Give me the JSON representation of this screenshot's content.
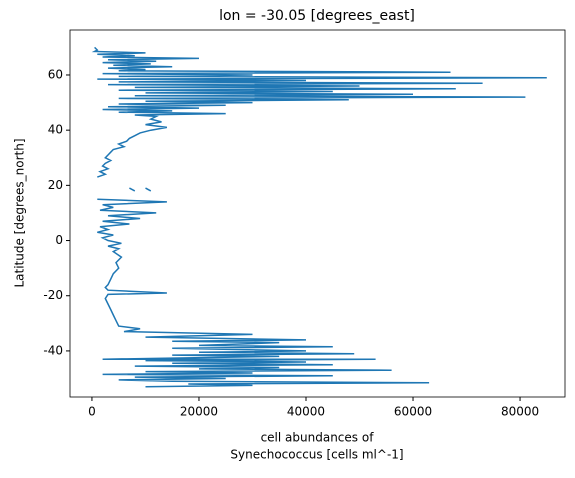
{
  "chart_data": {
    "type": "line",
    "title": "lon = -30.05 [degrees_east]",
    "xlabel": [
      "cell abundances of",
      "Synechococcus [cells ml^-1]"
    ],
    "ylabel": "Latitude [degrees_north]",
    "color": "#1f77b4",
    "xlim": [
      -4100,
      88400
    ],
    "ylim": [
      -56.7,
      76.3
    ],
    "xticks": [
      0,
      20000,
      40000,
      60000,
      80000
    ],
    "yticks": [
      -40,
      -20,
      0,
      20,
      40,
      60
    ],
    "x": [
      500,
      1000,
      500,
      10000,
      1000,
      8000,
      2000,
      20000,
      3000,
      12000,
      2000,
      11000,
      4000,
      15000,
      3000,
      10000,
      5000,
      67000,
      2000,
      30000,
      5000,
      85000,
      1000,
      40000,
      5000,
      73000,
      3000,
      50000,
      8000,
      68000,
      5000,
      45000,
      10000,
      60000,
      8000,
      81000,
      5000,
      48000,
      10000,
      30000,
      5000,
      25000,
      3000,
      20000,
      2000,
      15000,
      5000,
      25000,
      8000,
      12000,
      11000,
      13000,
      10000,
      14000,
      11000,
      9000,
      8000,
      7000,
      6500,
      5000,
      6000,
      4000,
      3500,
      3000,
      2500,
      3500,
      2500,
      2000,
      3000,
      1500,
      2500,
      1000,
      null,
      7000,
      8000,
      null,
      10000,
      11000,
      null,
      1000,
      14000,
      2000,
      4000,
      1500,
      12000,
      3000,
      9000,
      2000,
      7000,
      1500,
      3000,
      1000,
      4000,
      2000,
      3000,
      5500,
      3000,
      5000,
      4000,
      5500,
      4500,
      5000,
      4000,
      3500,
      3000,
      2500,
      3000,
      14000,
      3000,
      2500,
      3000,
      3500,
      4000,
      4500,
      5000,
      9000,
      6000,
      30000,
      10000,
      40000,
      15000,
      35000,
      20000,
      45000,
      15000,
      40000,
      20000,
      49000,
      15000,
      35000,
      2000,
      53000,
      10000,
      40000,
      15000,
      45000,
      8000,
      35000,
      20000,
      56000,
      10000,
      30000,
      2000,
      45000,
      8000,
      25000,
      5000,
      15000,
      63000,
      18000,
      30000,
      10000
    ],
    "y": [
      70,
      69,
      68.5,
      68,
      67.5,
      67,
      66.5,
      66,
      65.5,
      65,
      64.5,
      64,
      63.5,
      63,
      62.5,
      62,
      61.5,
      61,
      60.5,
      60,
      59.5,
      59,
      58.5,
      58,
      57.5,
      57,
      56.5,
      56,
      55.5,
      55,
      54.5,
      54,
      53.5,
      53,
      52.5,
      52,
      51.5,
      51,
      50.5,
      50,
      49.5,
      49,
      48.5,
      48,
      47.5,
      47,
      46.5,
      46,
      45.5,
      45,
      44,
      43,
      42,
      41,
      40,
      39,
      38,
      37,
      36,
      35,
      34,
      33,
      32,
      31,
      30,
      29,
      28,
      27,
      26,
      25,
      24,
      23,
      null,
      19,
      18,
      null,
      19,
      18,
      null,
      15,
      14,
      13,
      12,
      11,
      10,
      9,
      8,
      7,
      6,
      5,
      4,
      3,
      2,
      1,
      0,
      -1,
      -2,
      -3,
      -4,
      -6,
      -8,
      -10,
      -12,
      -14,
      -16,
      -17,
      -18,
      -19,
      -19.5,
      -21,
      -23,
      -25,
      -27,
      -29,
      -31,
      -32,
      -33,
      -34,
      -35,
      -36,
      -36.5,
      -37,
      -38,
      -38.5,
      -39,
      -40,
      -40.5,
      -41,
      -41.5,
      -42,
      -43,
      -43,
      -43.5,
      -44,
      -44.5,
      -45,
      -45.5,
      -46,
      -46.5,
      -47,
      -47.5,
      -48,
      -48.5,
      -49,
      -49.5,
      -50,
      -50.5,
      -51,
      -51.5,
      -52,
      -52.5,
      -53
    ]
  }
}
